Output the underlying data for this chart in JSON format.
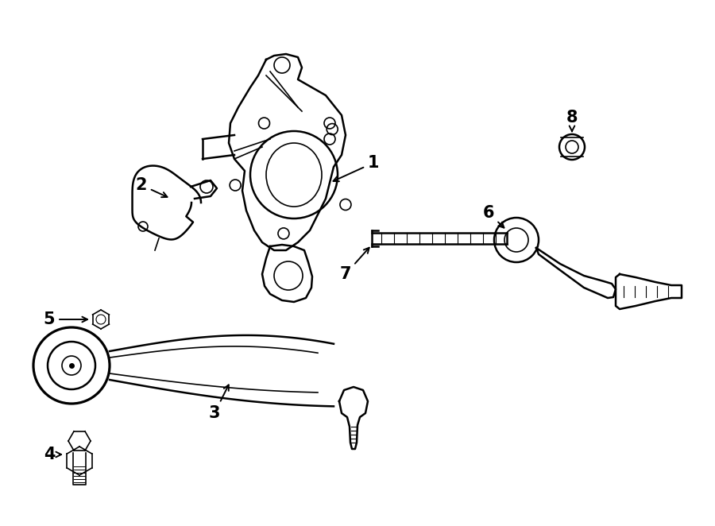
{
  "background_color": "#ffffff",
  "line_color": "#000000",
  "figsize": [
    9.0,
    6.62
  ],
  "dpi": 100,
  "xlim": [
    0,
    900
  ],
  "ylim": [
    0,
    662
  ]
}
